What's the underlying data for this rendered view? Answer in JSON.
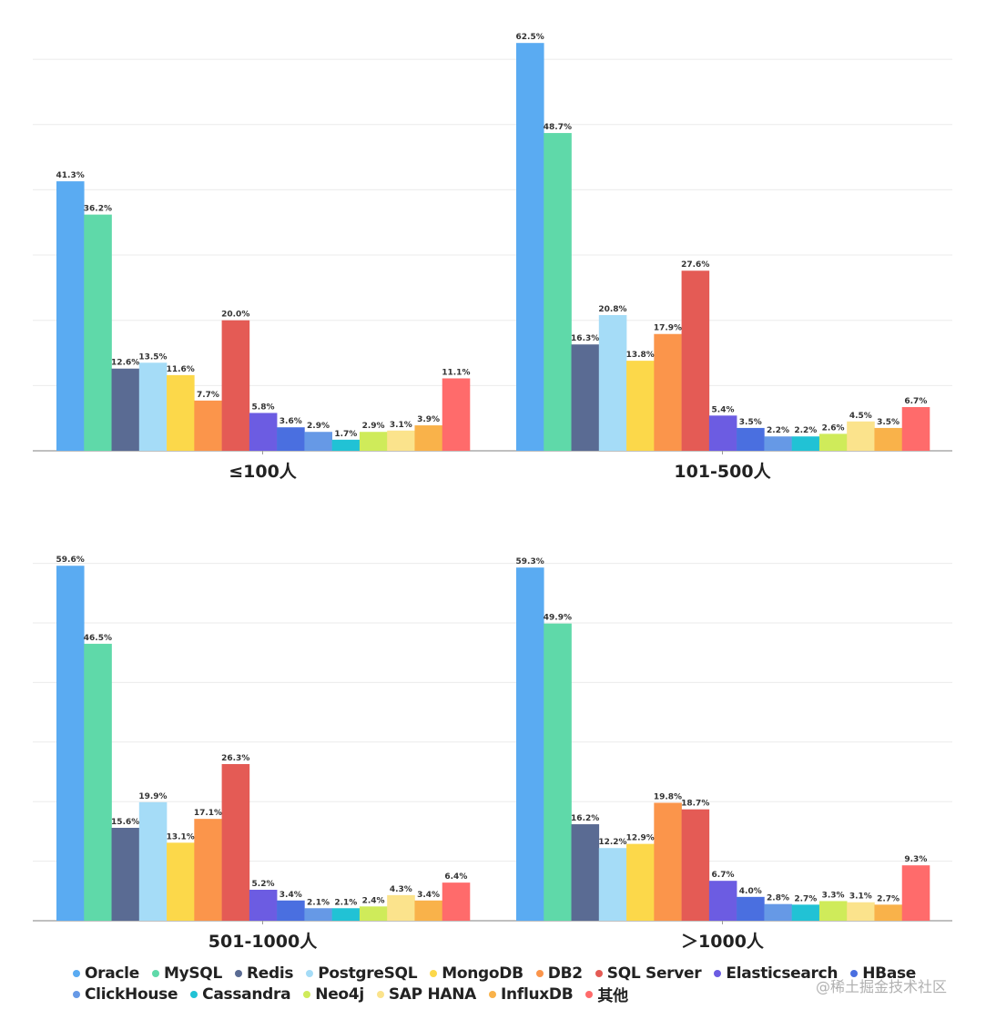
{
  "chart_data": [
    {
      "type": "bar",
      "title": "≤100人",
      "categories": [
        "Oracle",
        "MySQL",
        "Redis",
        "PostgreSQL",
        "MongoDB",
        "DB2",
        "SQL Server",
        "Elasticsearch",
        "HBase",
        "ClickHouse",
        "Cassandra",
        "Neo4j",
        "SAP HANA",
        "InfluxDB",
        "其他"
      ],
      "values": [
        41.3,
        36.2,
        12.6,
        13.5,
        11.6,
        7.7,
        20.0,
        5.8,
        3.6,
        2.9,
        1.7,
        2.9,
        3.1,
        3.9,
        11.1
      ],
      "labels": [
        "41.3%",
        "36.2%",
        "12.6%",
        "13.5%",
        "11.6%",
        "7.7%",
        "20.0%",
        "5.8%",
        "3.6%",
        "2.9%",
        "1.7%",
        "2.9%",
        "3.1%",
        "3.9%",
        "11.1%"
      ],
      "xlabel": "",
      "ylabel": "",
      "ylim": [
        0,
        60
      ],
      "grid": true
    },
    {
      "type": "bar",
      "title": "101-500人",
      "categories": [
        "Oracle",
        "MySQL",
        "Redis",
        "PostgreSQL",
        "MongoDB",
        "DB2",
        "SQL Server",
        "Elasticsearch",
        "HBase",
        "ClickHouse",
        "Cassandra",
        "Neo4j",
        "SAP HANA",
        "InfluxDB",
        "其他"
      ],
      "values": [
        62.5,
        48.7,
        16.3,
        20.8,
        13.8,
        17.9,
        27.6,
        5.4,
        3.5,
        2.2,
        2.2,
        2.6,
        4.5,
        3.5,
        6.7
      ],
      "labels": [
        "62.5%",
        "48.7%",
        "16.3%",
        "20.8%",
        "13.8%",
        "17.9%",
        "27.6%",
        "5.4%",
        "3.5%",
        "2.2%",
        "2.2%",
        "2.6%",
        "4.5%",
        "3.5%",
        "6.7%"
      ],
      "xlabel": "",
      "ylabel": "",
      "ylim": [
        0,
        60
      ],
      "grid": true
    },
    {
      "type": "bar",
      "title": "501-1000人",
      "categories": [
        "Oracle",
        "MySQL",
        "Redis",
        "PostgreSQL",
        "MongoDB",
        "DB2",
        "SQL Server",
        "Elasticsearch",
        "HBase",
        "ClickHouse",
        "Cassandra",
        "Neo4j",
        "SAP HANA",
        "InfluxDB",
        "其他"
      ],
      "values": [
        59.6,
        46.5,
        15.6,
        19.9,
        13.1,
        17.1,
        26.3,
        5.2,
        3.4,
        2.1,
        2.1,
        2.4,
        4.3,
        3.4,
        6.4
      ],
      "labels": [
        "59.6%",
        "46.5%",
        "15.6%",
        "19.9%",
        "13.1%",
        "17.1%",
        "26.3%",
        "5.2%",
        "3.4%",
        "2.1%",
        "2.1%",
        "2.4%",
        "4.3%",
        "3.4%",
        "6.4%"
      ],
      "xlabel": "",
      "ylabel": "",
      "ylim": [
        0,
        60
      ],
      "grid": true
    },
    {
      "type": "bar",
      "title": "＞1000人",
      "categories": [
        "Oracle",
        "MySQL",
        "Redis",
        "PostgreSQL",
        "MongoDB",
        "DB2",
        "SQL Server",
        "Elasticsearch",
        "HBase",
        "ClickHouse",
        "Cassandra",
        "Neo4j",
        "SAP HANA",
        "InfluxDB",
        "其他"
      ],
      "values": [
        59.3,
        49.9,
        16.2,
        12.2,
        12.9,
        19.8,
        18.7,
        6.7,
        4.0,
        2.8,
        2.7,
        3.3,
        3.1,
        2.7,
        9.3
      ],
      "labels": [
        "59.3%",
        "49.9%",
        "16.2%",
        "12.2%",
        "12.9%",
        "19.8%",
        "18.7%",
        "6.7%",
        "4.0%",
        "2.8%",
        "2.7%",
        "3.3%",
        "3.1%",
        "2.7%",
        "9.3%"
      ],
      "xlabel": "",
      "ylabel": "",
      "ylim": [
        0,
        60
      ],
      "grid": true
    }
  ],
  "legend": {
    "placement": "bottom",
    "rows": [
      [
        {
          "name": "Oracle",
          "color": "#5AABF2"
        },
        {
          "name": "MySQL",
          "color": "#5FD9A9"
        },
        {
          "name": "Redis",
          "color": "#5A6B93"
        },
        {
          "name": "PostgreSQL",
          "color": "#A5DCF7"
        },
        {
          "name": "MongoDB",
          "color": "#FCD84A"
        },
        {
          "name": "DB2",
          "color": "#FB954B"
        },
        {
          "name": "SQL Server",
          "color": "#E45B55"
        },
        {
          "name": "Elasticsearch",
          "color": "#6C5CE2"
        },
        {
          "name": "HBase",
          "color": "#4A6FE0"
        }
      ],
      [
        {
          "name": "ClickHouse",
          "color": "#6699E6"
        },
        {
          "name": "Cassandra",
          "color": "#21C2D5"
        },
        {
          "name": "Neo4j",
          "color": "#CFEB5A"
        },
        {
          "name": "SAP HANA",
          "color": "#FBE38C"
        },
        {
          "name": "InfluxDB",
          "color": "#F9B24A"
        },
        {
          "name": "其他",
          "color": "#FF6B6B"
        }
      ]
    ]
  },
  "colors": [
    "#5AABF2",
    "#5FD9A9",
    "#5A6B93",
    "#A5DCF7",
    "#FCD84A",
    "#FB954B",
    "#E45B55",
    "#6C5CE2",
    "#4A6FE0",
    "#6699E6",
    "#21C2D5",
    "#CFEB5A",
    "#FBE38C",
    "#F9B24A",
    "#FF6B6B"
  ],
  "watermark": "@稀土掘金技术社区"
}
